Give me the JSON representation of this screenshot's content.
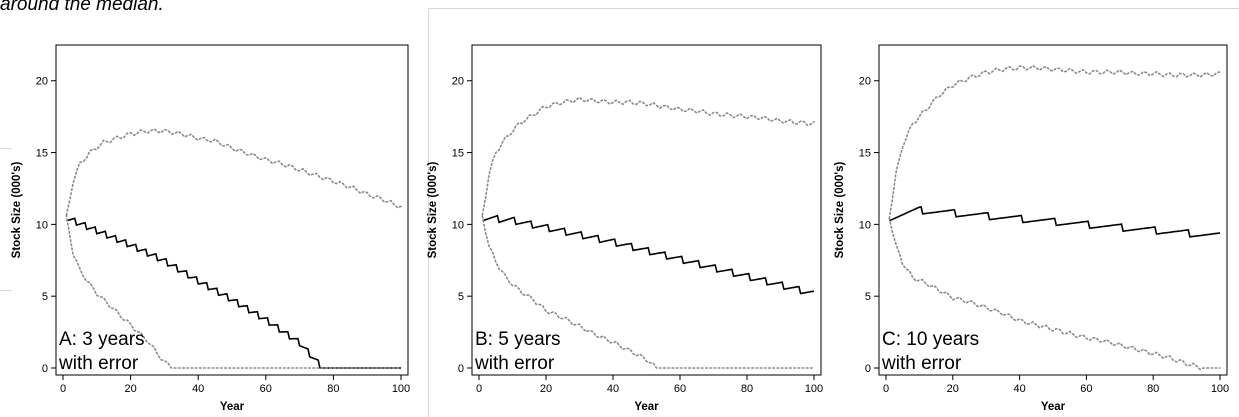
{
  "caption": "around the median.",
  "chart_data": [
    {
      "type": "line",
      "panel_label_lines": [
        "A: 3 years",
        "with error"
      ],
      "xlabel": "Year",
      "ylabel": "Stock Size (000's)",
      "xlim": [
        0,
        100
      ],
      "ylim": [
        0,
        22
      ],
      "xticks": [
        0,
        20,
        40,
        60,
        80,
        100
      ],
      "yticks": [
        0,
        5,
        10,
        15,
        20
      ],
      "step_years": 3,
      "series": [
        {
          "role": "upper",
          "style": "dotted",
          "x": [
            1,
            3,
            5,
            8,
            12,
            16,
            20,
            25,
            30,
            35,
            40,
            45,
            50,
            55,
            60,
            65,
            70,
            75,
            80,
            85,
            90,
            95,
            100
          ],
          "y": [
            10.5,
            13.0,
            14.2,
            15.0,
            15.7,
            16.0,
            16.3,
            16.5,
            16.5,
            16.3,
            16.0,
            15.8,
            15.3,
            14.9,
            14.5,
            14.2,
            13.8,
            13.4,
            13.0,
            12.6,
            12.1,
            11.7,
            11.2
          ]
        },
        {
          "role": "median",
          "style": "solid",
          "x": [
            1,
            10,
            20,
            30,
            40,
            50,
            60,
            70,
            77,
            80,
            90,
            100
          ],
          "y": [
            10.5,
            9.6,
            8.6,
            7.5,
            6.1,
            4.8,
            3.4,
            1.8,
            0.0,
            0.0,
            0.0,
            0.0
          ]
        },
        {
          "role": "lower",
          "style": "dotted",
          "x": [
            1,
            3,
            5,
            8,
            10,
            15,
            20,
            25,
            28,
            30,
            33,
            35,
            40,
            60,
            80,
            100
          ],
          "y": [
            10.5,
            8.0,
            6.8,
            5.8,
            5.2,
            4.1,
            3.0,
            1.9,
            1.0,
            0.4,
            0.0,
            0.0,
            0.0,
            0.0,
            0.0,
            0.0
          ]
        }
      ]
    },
    {
      "type": "line",
      "panel_label_lines": [
        "B: 5 years",
        "with error"
      ],
      "xlabel": "Year",
      "ylabel": "Stock Size (000's)",
      "xlim": [
        0,
        100
      ],
      "ylim": [
        0,
        22
      ],
      "xticks": [
        0,
        20,
        40,
        60,
        80,
        100
      ],
      "yticks": [
        0,
        5,
        10,
        15,
        20
      ],
      "step_years": 5,
      "series": [
        {
          "role": "upper",
          "style": "dotted",
          "x": [
            1,
            3,
            5,
            8,
            12,
            16,
            20,
            25,
            30,
            35,
            40,
            45,
            50,
            55,
            60,
            65,
            70,
            75,
            80,
            85,
            90,
            95,
            100
          ],
          "y": [
            10.6,
            13.5,
            15.0,
            16.0,
            17.0,
            17.6,
            18.2,
            18.5,
            18.7,
            18.6,
            18.5,
            18.5,
            18.4,
            18.2,
            18.0,
            17.9,
            17.7,
            17.6,
            17.5,
            17.4,
            17.2,
            17.1,
            17.0
          ]
        },
        {
          "role": "median",
          "style": "solid",
          "x": [
            1,
            10,
            20,
            30,
            40,
            50,
            60,
            70,
            80,
            90,
            100
          ],
          "y": [
            10.5,
            10.3,
            9.8,
            9.3,
            8.8,
            8.2,
            7.6,
            7.0,
            6.4,
            5.8,
            5.2
          ]
        },
        {
          "role": "lower",
          "style": "dotted",
          "x": [
            1,
            3,
            5,
            8,
            12,
            16,
            20,
            25,
            30,
            35,
            40,
            45,
            50,
            53,
            55,
            60,
            80,
            100
          ],
          "y": [
            10.5,
            8.5,
            7.4,
            6.3,
            5.4,
            4.8,
            4.0,
            3.5,
            2.9,
            2.3,
            1.8,
            1.2,
            0.6,
            0.0,
            0.0,
            0.0,
            0.0,
            0.0
          ]
        }
      ]
    },
    {
      "type": "line",
      "panel_label_lines": [
        "C: 10 years",
        "with error"
      ],
      "xlabel": "Year",
      "ylabel": "Stock Size (000's)",
      "xlim": [
        0,
        100
      ],
      "ylim": [
        0,
        22
      ],
      "xticks": [
        0,
        20,
        40,
        60,
        80,
        100
      ],
      "yticks": [
        0,
        5,
        10,
        15,
        20
      ],
      "step_years": 10,
      "series": [
        {
          "role": "upper",
          "style": "dotted",
          "x": [
            1,
            3,
            5,
            8,
            12,
            16,
            20,
            25,
            30,
            35,
            40,
            45,
            50,
            55,
            60,
            65,
            70,
            75,
            80,
            85,
            90,
            95,
            100
          ],
          "y": [
            10.5,
            13.5,
            15.5,
            17.0,
            18.0,
            19.0,
            19.7,
            20.2,
            20.6,
            20.8,
            20.9,
            20.9,
            20.8,
            20.7,
            20.6,
            20.6,
            20.6,
            20.5,
            20.5,
            20.4,
            20.4,
            20.4,
            20.5
          ]
        },
        {
          "role": "median",
          "style": "solid",
          "x": [
            1,
            10,
            20,
            30,
            40,
            50,
            60,
            70,
            80,
            90,
            100
          ],
          "y": [
            10.5,
            11.0,
            10.8,
            10.6,
            10.4,
            10.2,
            10.0,
            9.8,
            9.6,
            9.4,
            9.2
          ]
        },
        {
          "role": "lower",
          "style": "dotted",
          "x": [
            1,
            3,
            5,
            8,
            12,
            16,
            20,
            25,
            30,
            35,
            40,
            45,
            50,
            55,
            60,
            65,
            70,
            75,
            80,
            85,
            90,
            95,
            100
          ],
          "y": [
            10.5,
            8.5,
            7.3,
            6.3,
            5.9,
            5.4,
            4.9,
            4.6,
            4.2,
            3.8,
            3.3,
            3.0,
            2.7,
            2.4,
            2.1,
            1.9,
            1.6,
            1.3,
            1.0,
            0.7,
            0.3,
            0.0,
            0.0
          ]
        }
      ]
    }
  ]
}
